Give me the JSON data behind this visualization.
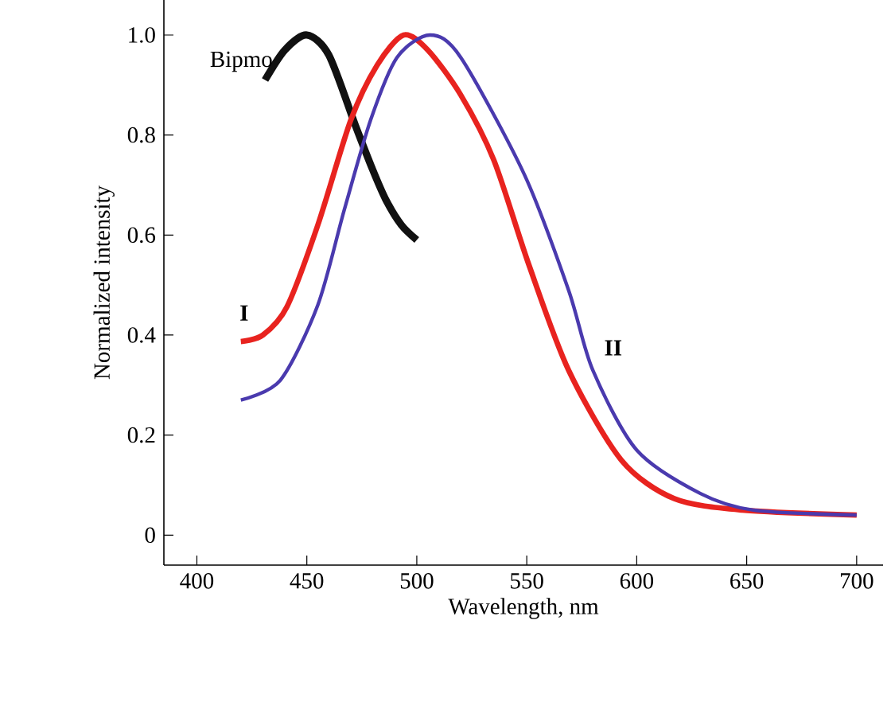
{
  "chart_data": {
    "type": "line",
    "xlabel": "Wavelength, nm",
    "ylabel": "Normalized intensity",
    "xlim": [
      385,
      712
    ],
    "ylim": [
      -0.06,
      1.07
    ],
    "xticks": [
      400,
      450,
      500,
      550,
      600,
      650,
      700
    ],
    "yticks": [
      {
        "value": 0,
        "label": "0"
      },
      {
        "value": 0.2,
        "label": "0.2"
      },
      {
        "value": 0.4,
        "label": "0.4"
      },
      {
        "value": 0.6,
        "label": "0.6"
      },
      {
        "value": 0.8,
        "label": "0.8"
      },
      {
        "value": 1.0,
        "label": "1.0"
      }
    ],
    "grid": false,
    "legend": false,
    "marker": "none",
    "line_style": "solid",
    "series": [
      {
        "name": "Bipmo",
        "color": "#111111",
        "x": [
          431,
          440,
          450,
          460,
          472,
          480,
          486,
          493,
          500
        ],
        "values": [
          0.91,
          0.97,
          1.0,
          0.96,
          0.82,
          0.73,
          0.67,
          0.62,
          0.59
        ]
      },
      {
        "name": "**I**",
        "color": "#e8231f",
        "x": [
          420,
          430,
          441,
          455,
          470,
          482,
          494,
          505,
          520,
          535,
          551,
          569,
          593,
          617,
          648,
          700
        ],
        "values": [
          0.387,
          0.4,
          0.457,
          0.62,
          0.83,
          0.94,
          1.0,
          0.97,
          0.88,
          0.75,
          0.54,
          0.33,
          0.15,
          0.073,
          0.05,
          0.04
        ]
      },
      {
        "name": "**II**",
        "color": "#4a3aae",
        "x": [
          420,
          438,
          455,
          467,
          479,
          491,
          506,
          520,
          549,
          569,
          580,
          600,
          629,
          653,
          700
        ],
        "values": [
          0.27,
          0.31,
          0.46,
          0.65,
          0.83,
          0.955,
          1.0,
          0.955,
          0.72,
          0.49,
          0.33,
          0.17,
          0.083,
          0.05,
          0.04
        ]
      }
    ]
  }
}
